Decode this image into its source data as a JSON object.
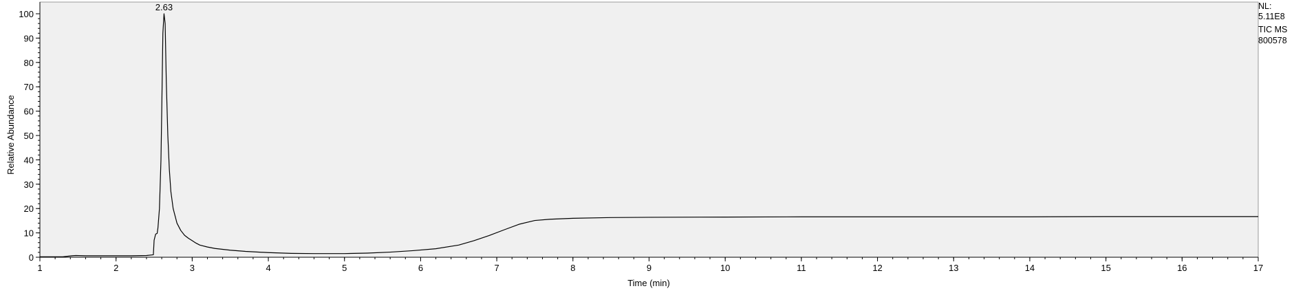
{
  "chart_data": {
    "type": "line",
    "title": "",
    "xlabel": "Time (min)",
    "ylabel": "Relative Abundance",
    "xlim": [
      1,
      17
    ],
    "ylim": [
      0,
      100
    ],
    "x_ticks": [
      "1",
      "2",
      "3",
      "4",
      "5",
      "6",
      "7",
      "8",
      "9",
      "10",
      "11",
      "12",
      "13",
      "14",
      "15",
      "16",
      "17"
    ],
    "y_ticks": [
      "0",
      "10",
      "20",
      "30",
      "40",
      "50",
      "60",
      "70",
      "80",
      "90",
      "100"
    ],
    "grid": false,
    "plot_background": "#f0f0f0",
    "line_color": "#000000",
    "peak_annotations": [
      {
        "label": "2.63",
        "x": 2.63,
        "y": 100
      }
    ],
    "info_lines": [
      "NL:",
      "5.11E8",
      "TIC  MS",
      "800578"
    ],
    "series": [
      {
        "x": [
          1.0,
          1.3,
          1.42,
          1.47,
          1.6,
          1.8,
          2.0,
          2.2,
          2.4,
          2.49,
          2.5,
          2.52,
          2.54,
          2.55,
          2.57,
          2.59,
          2.6,
          2.615,
          2.63,
          2.645,
          2.66,
          2.68,
          2.7,
          2.72,
          2.75,
          2.8,
          2.85,
          2.9,
          2.95,
          3.0,
          3.05,
          3.1,
          3.2,
          3.3,
          3.5,
          3.7,
          4.0,
          4.3,
          4.6,
          5.0,
          5.3,
          5.6,
          5.9,
          6.2,
          6.5,
          6.7,
          6.9,
          7.1,
          7.3,
          7.5,
          7.7,
          8.0,
          8.5,
          9.0,
          10.0,
          11.0,
          12.0,
          13.0,
          14.0,
          15.0,
          16.0,
          17.0
        ],
        "y": [
          0.2,
          0.2,
          0.6,
          0.7,
          0.6,
          0.6,
          0.6,
          0.6,
          0.7,
          1.0,
          7.0,
          9.5,
          9.8,
          12,
          20,
          40,
          60,
          92,
          100,
          96,
          72,
          50,
          36,
          27,
          20,
          14,
          11,
          9,
          7.8,
          6.8,
          5.8,
          5.0,
          4.2,
          3.6,
          2.9,
          2.4,
          1.9,
          1.6,
          1.5,
          1.5,
          1.7,
          2.1,
          2.7,
          3.5,
          5.0,
          6.8,
          8.9,
          11.3,
          13.6,
          15.1,
          15.6,
          16.0,
          16.3,
          16.4,
          16.5,
          16.6,
          16.6,
          16.6,
          16.6,
          16.7,
          16.7,
          16.7
        ]
      }
    ]
  }
}
